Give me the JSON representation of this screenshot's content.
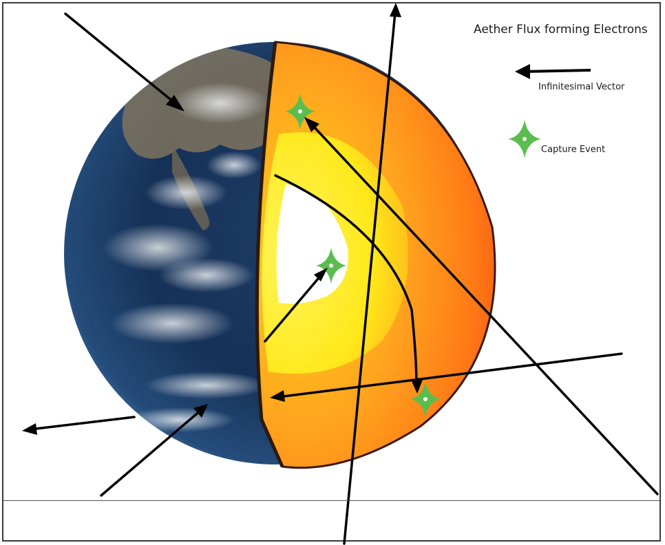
{
  "legend": {
    "title": "Aether Flux forming Electrons",
    "vector_label": "Infinitesimal Vector",
    "capture_label": "Capture Event"
  },
  "colors": {
    "arrow": "#000000",
    "capture_star": "#5bbd4e",
    "crust": "#f24a10",
    "mantle": "#ff8a1c",
    "outer_core": "#ffe81a",
    "inner_core": "#ffffff",
    "ocean": "#142a4a"
  },
  "icons": {
    "vector": "arrow-left-icon",
    "capture": "four-point-star-icon"
  }
}
